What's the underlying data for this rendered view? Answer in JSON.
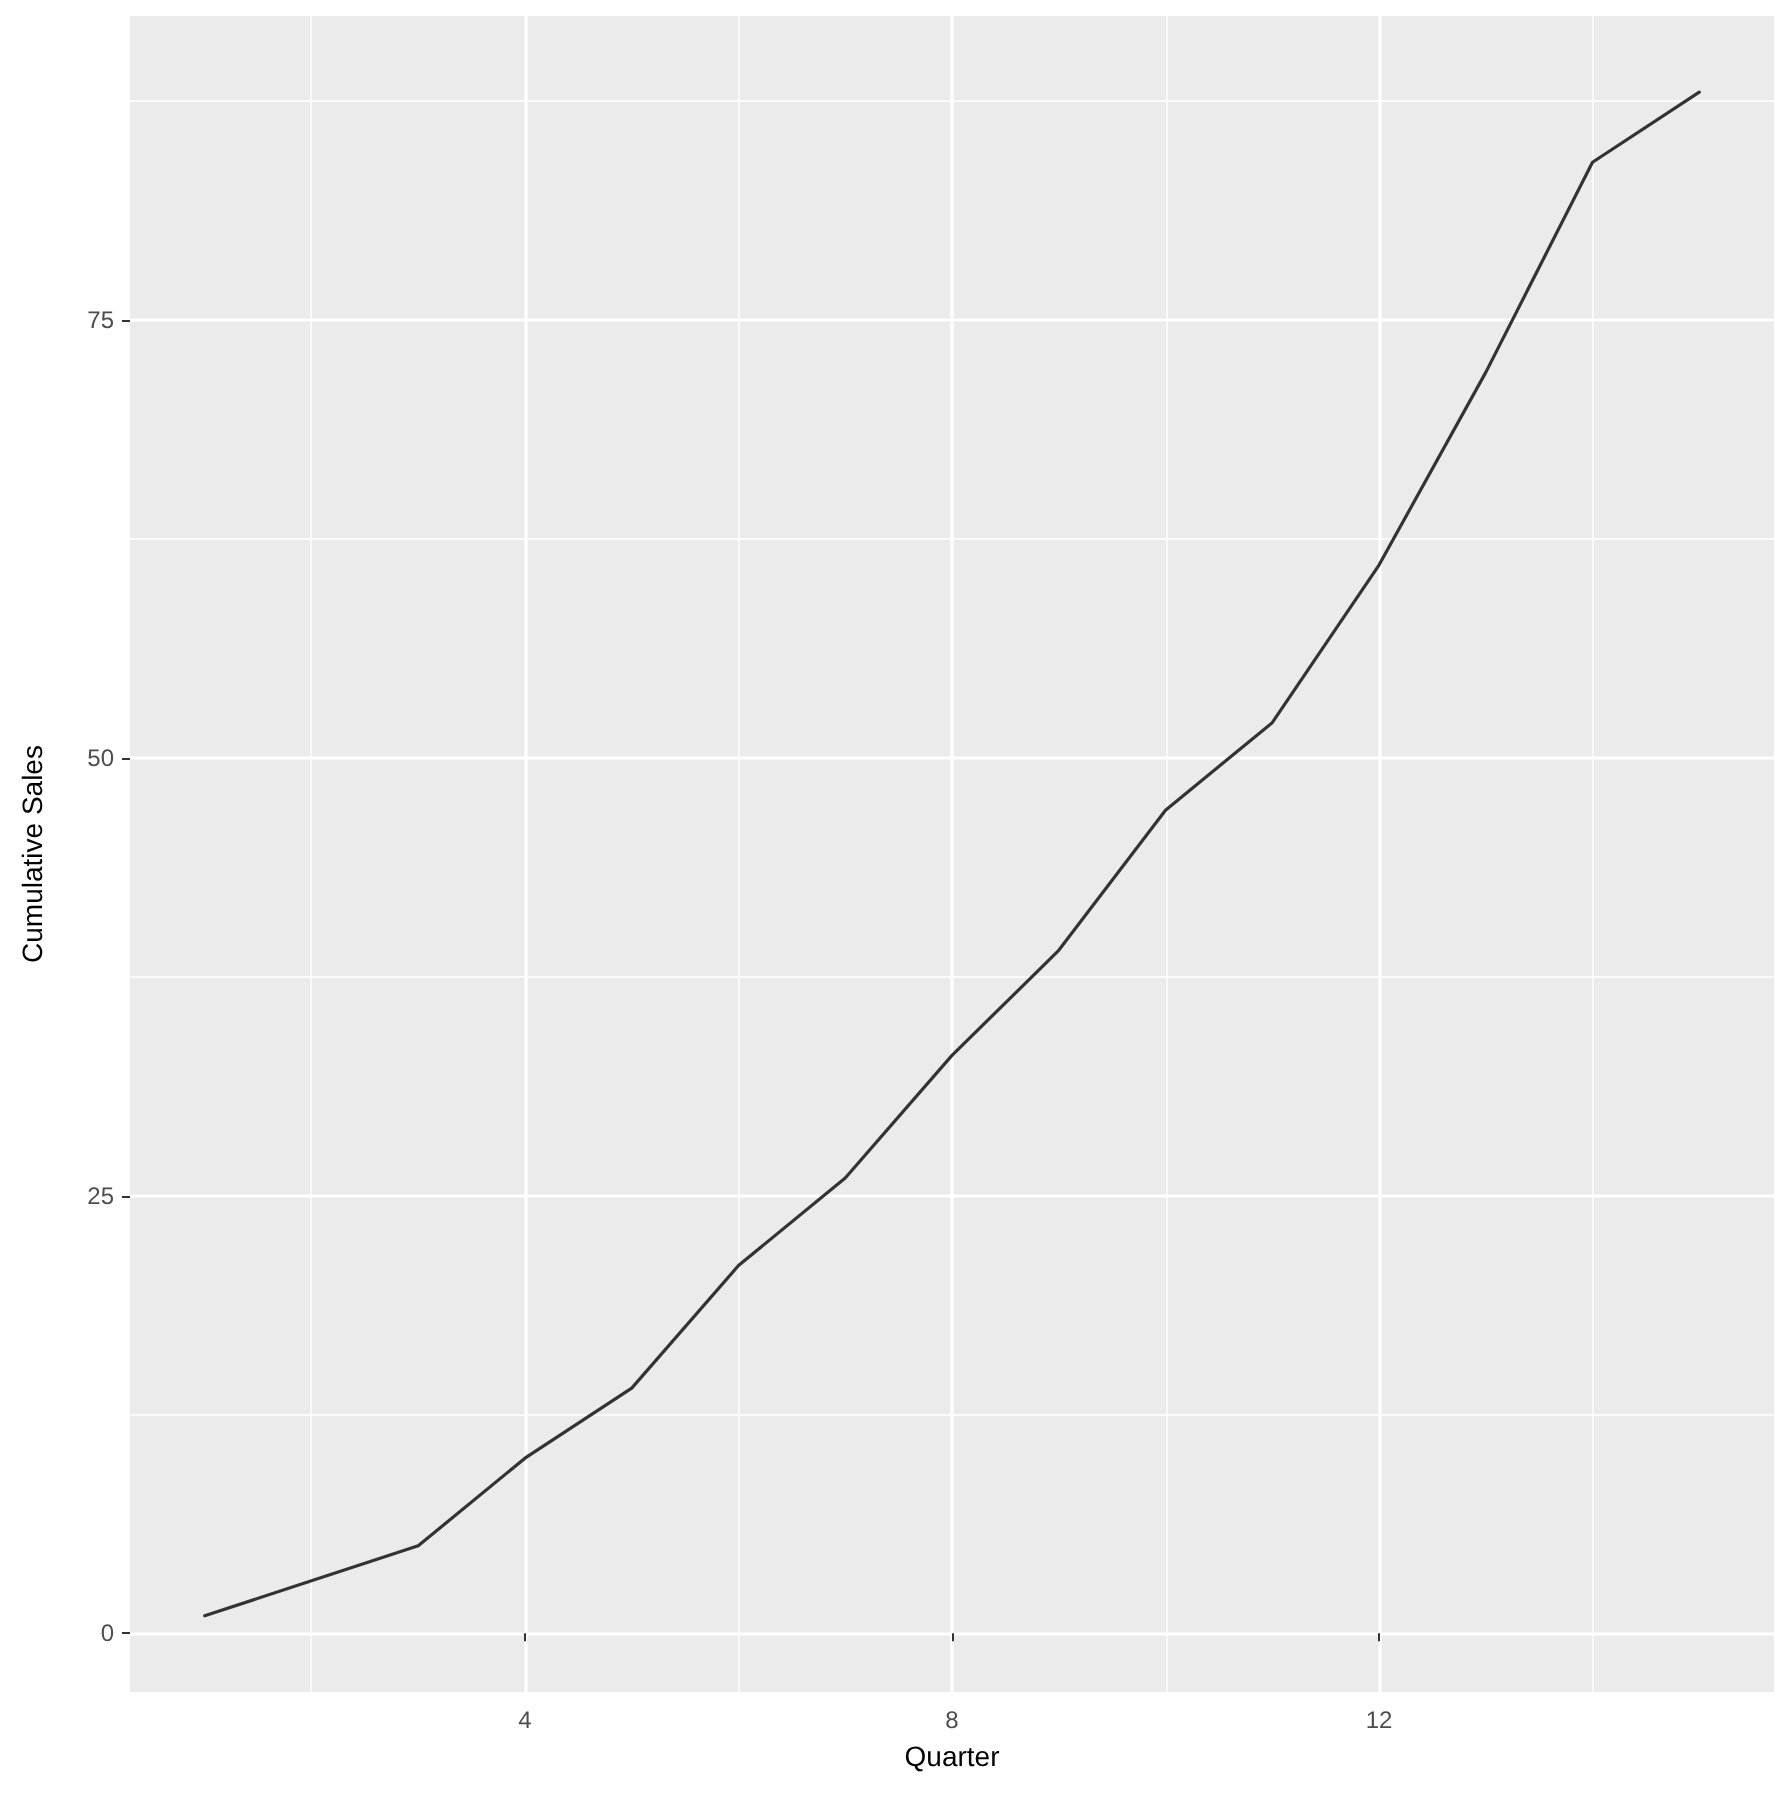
{
  "chart_data": {
    "type": "line",
    "xlabel": "Quarter",
    "ylabel": "Cumulative Sales",
    "x": [
      1,
      2,
      3,
      4,
      5,
      6,
      7,
      8,
      9,
      10,
      11,
      12,
      13,
      14,
      15
    ],
    "series": [
      {
        "color": "#333333",
        "values": [
          1,
          3,
          5,
          10,
          14,
          21,
          26,
          33,
          39,
          47,
          52,
          61,
          72,
          84,
          88
        ]
      }
    ],
    "xlim": [
      0.3,
      15.7
    ],
    "ylim": [
      -3.35,
      92.35
    ],
    "xticks": [
      {
        "value": 2,
        "label": null
      },
      4,
      {
        "value": 6,
        "label": null
      },
      8,
      {
        "value": 10,
        "label": null
      },
      12,
      {
        "value": 14,
        "label": null
      }
    ],
    "yticks": [
      0,
      {
        "value": 12.5,
        "label": null
      },
      25,
      {
        "value": 37.5,
        "label": null
      },
      50,
      {
        "value": 62.5,
        "label": null
      },
      75,
      {
        "value": 87.5,
        "label": null
      }
    ],
    "grid": true,
    "marker": "none",
    "line_style": "solid"
  }
}
